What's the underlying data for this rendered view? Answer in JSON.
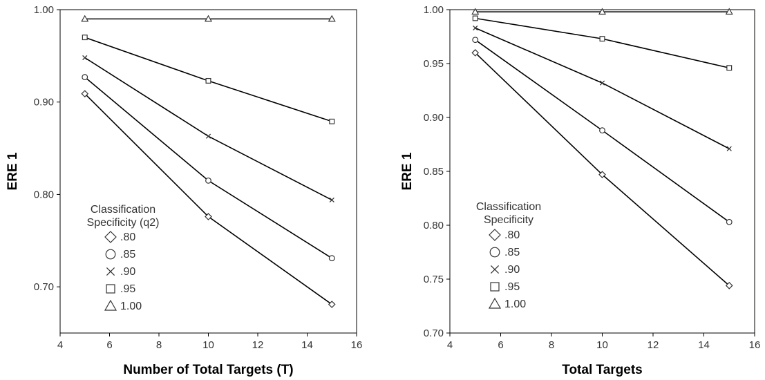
{
  "chart_data": [
    {
      "type": "line",
      "xlabel": "Number of Total Targets (T)",
      "ylabel": "ERE 1",
      "xlim": [
        4,
        16
      ],
      "ylim": [
        0.65,
        1.0
      ],
      "xticks": [
        4,
        6,
        8,
        10,
        12,
        14,
        16
      ],
      "xtick_labels": [
        "4",
        "6",
        "8",
        "10",
        "12",
        "14",
        "16"
      ],
      "yticks": [
        0.7,
        0.8,
        0.9,
        1.0
      ],
      "ytick_labels": [
        "0.70",
        "0.80",
        "0.90",
        "1.00"
      ],
      "grid": false,
      "legend": {
        "placement": "lower-left",
        "title_lines": [
          "Classification",
          "Specificity (q2)"
        ]
      },
      "x": [
        5,
        10,
        15
      ],
      "series": [
        {
          "name": ".80",
          "marker": "diamond",
          "values": [
            0.909,
            0.776,
            0.681
          ]
        },
        {
          "name": ".85",
          "marker": "circle",
          "values": [
            0.927,
            0.815,
            0.731
          ]
        },
        {
          "name": ".90",
          "marker": "x",
          "values": [
            0.948,
            0.863,
            0.794
          ]
        },
        {
          "name": ".95",
          "marker": "square",
          "values": [
            0.97,
            0.923,
            0.879
          ]
        },
        {
          "name": "1.00",
          "marker": "triangle",
          "values": [
            0.99,
            0.99,
            0.99
          ]
        }
      ]
    },
    {
      "type": "line",
      "xlabel": "Total Targets",
      "ylabel": "ERE 1",
      "xlim": [
        4,
        16
      ],
      "ylim": [
        0.7,
        1.0
      ],
      "xticks": [
        4,
        6,
        8,
        10,
        12,
        14,
        16
      ],
      "xtick_labels": [
        "4",
        "6",
        "8",
        "10",
        "12",
        "14",
        "16"
      ],
      "yticks": [
        0.7,
        0.75,
        0.8,
        0.85,
        0.9,
        0.95,
        1.0
      ],
      "ytick_labels": [
        "0.70",
        "0.75",
        "0.80",
        "0.85",
        "0.90",
        "0.95",
        "1.00"
      ],
      "grid": false,
      "legend": {
        "placement": "lower-left",
        "title_lines": [
          "Classification",
          "Specificity"
        ]
      },
      "x": [
        5,
        10,
        15
      ],
      "series": [
        {
          "name": ".80",
          "marker": "diamond",
          "values": [
            0.96,
            0.847,
            0.744
          ]
        },
        {
          "name": ".85",
          "marker": "circle",
          "values": [
            0.972,
            0.888,
            0.803
          ]
        },
        {
          "name": ".90",
          "marker": "x",
          "values": [
            0.983,
            0.932,
            0.871
          ]
        },
        {
          "name": ".95",
          "marker": "square",
          "values": [
            0.992,
            0.973,
            0.946
          ]
        },
        {
          "name": "1.00",
          "marker": "triangle",
          "values": [
            0.998,
            0.998,
            0.998
          ]
        }
      ]
    }
  ],
  "colors": {
    "line": "#000000",
    "marker_stroke": "#333333",
    "frame": "#000000",
    "background": "#ffffff"
  }
}
